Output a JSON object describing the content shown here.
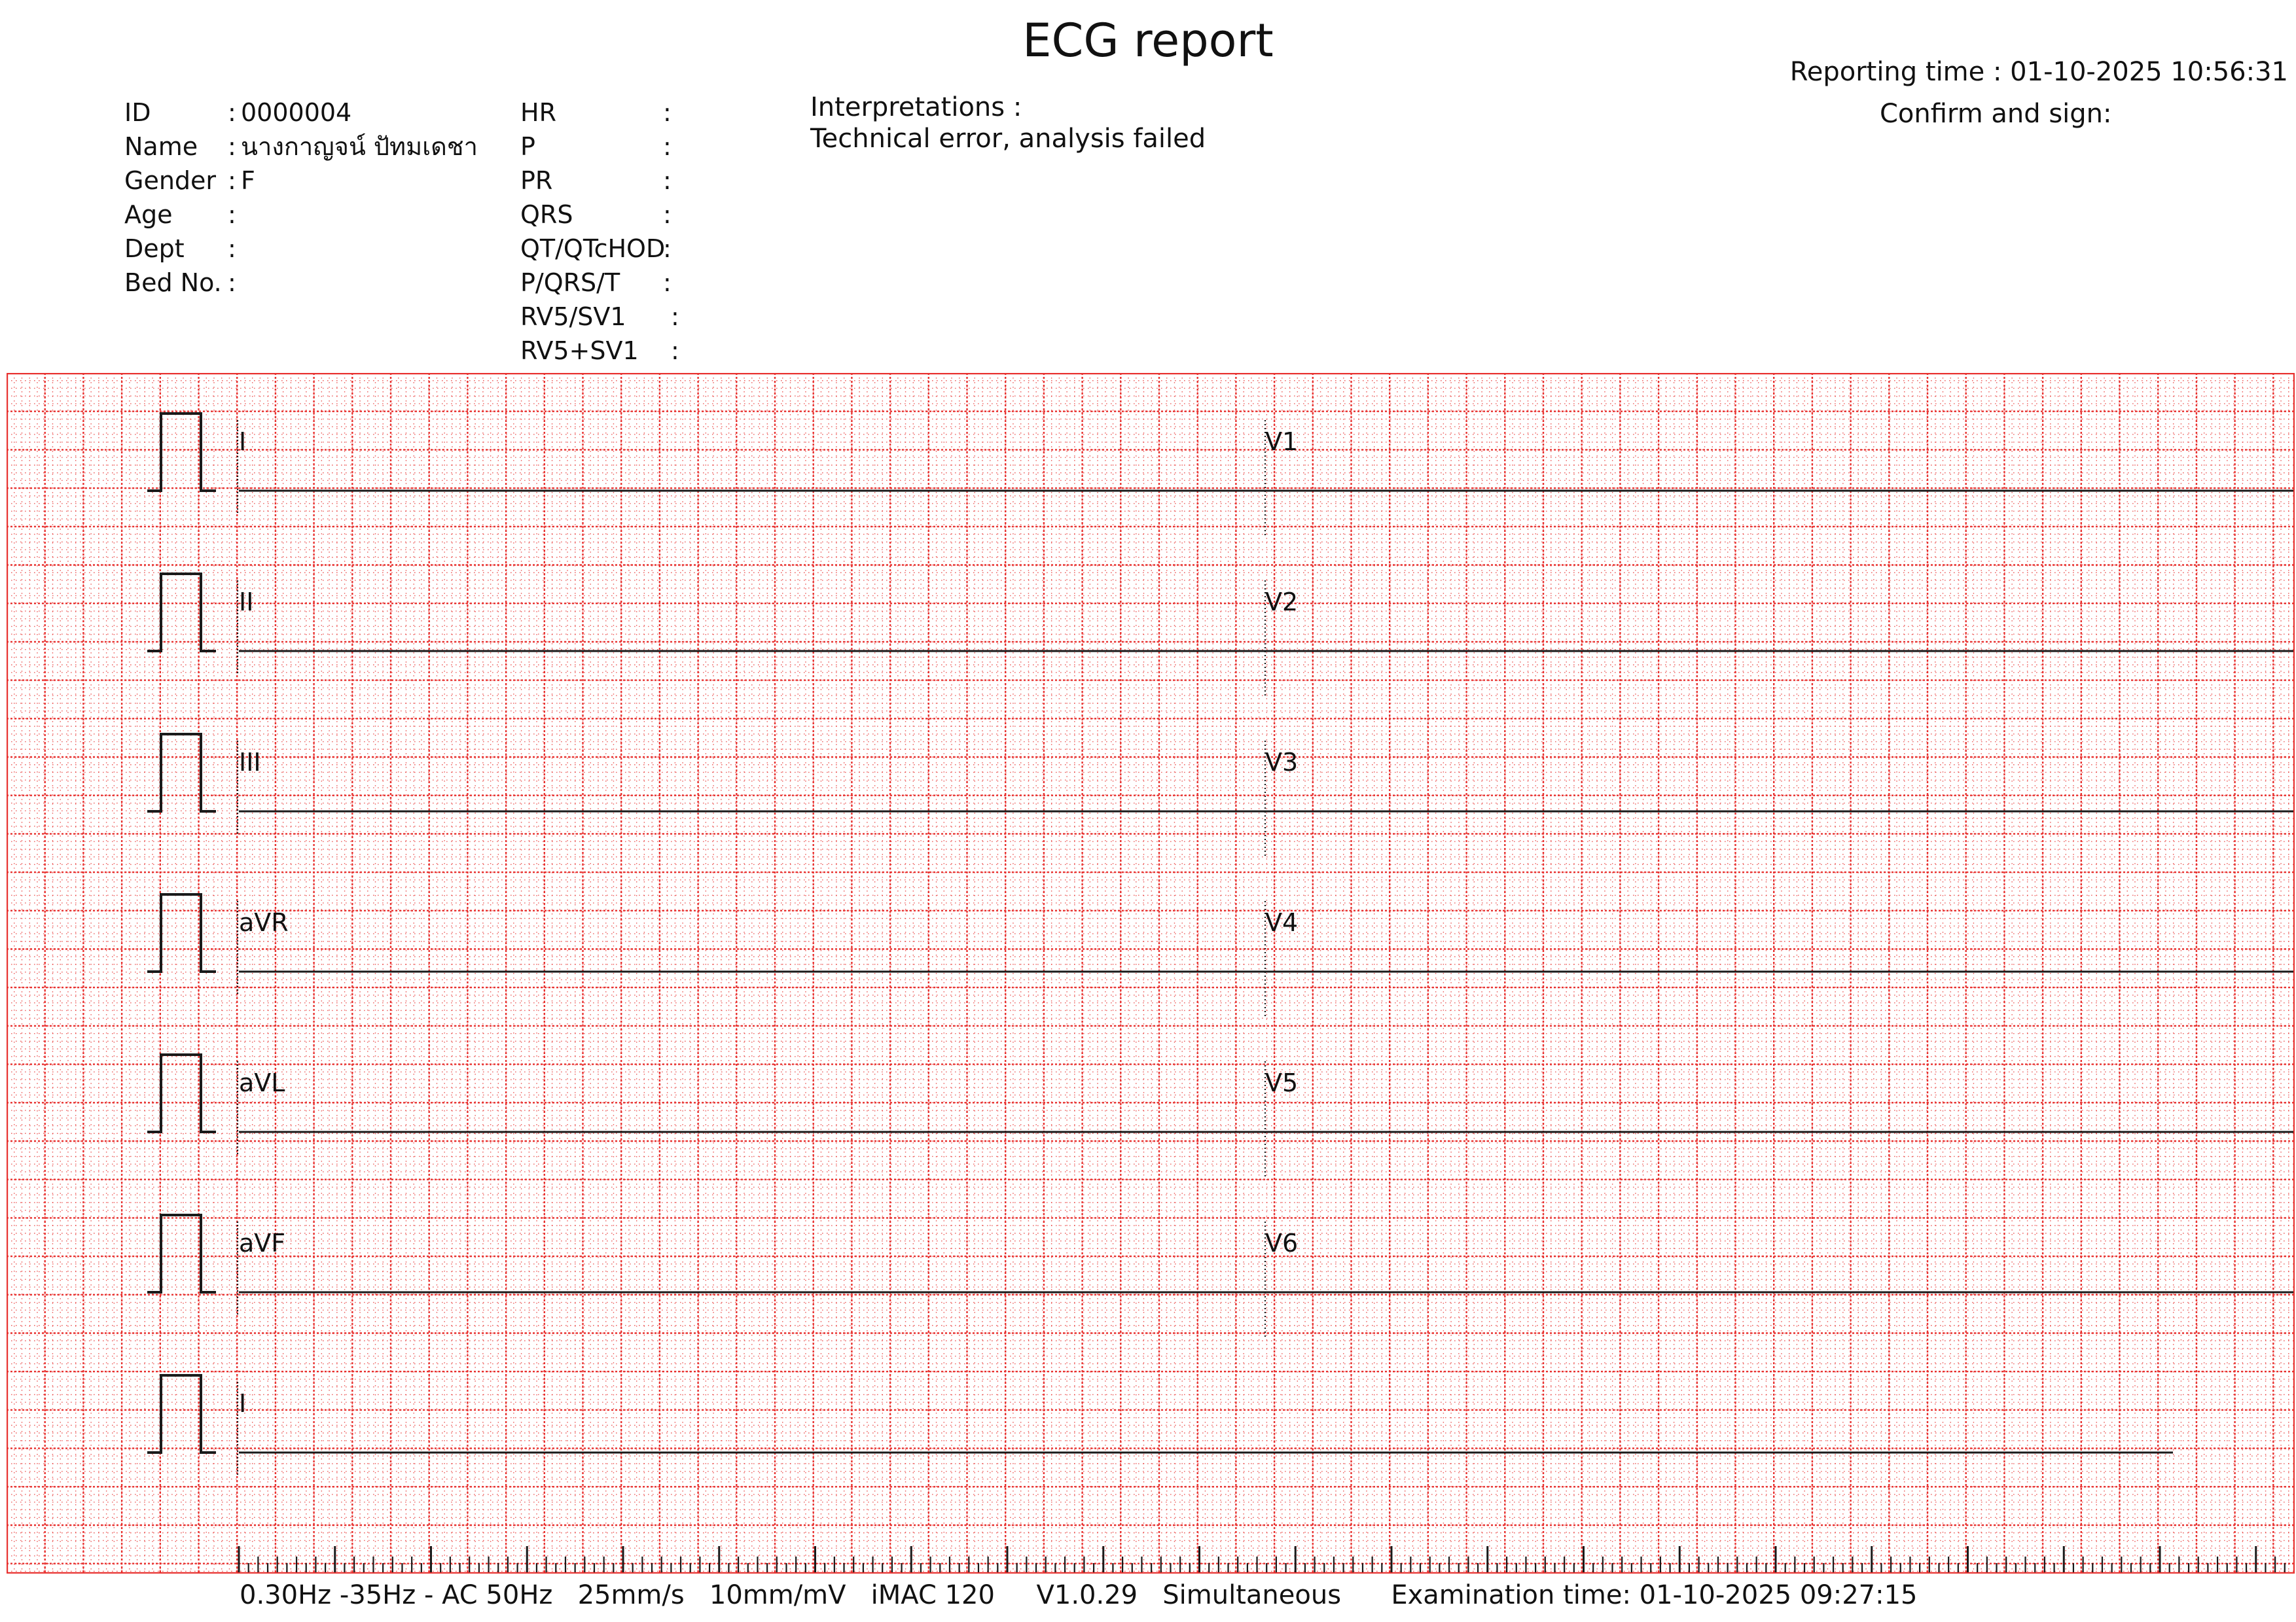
{
  "report": {
    "title": "ECG report",
    "reporting_time": "Reporting time : 01-10-2025 10:56:31",
    "confirm_sign": "Confirm and sign:"
  },
  "patient": [
    {
      "label": "ID",
      "value": "0000004"
    },
    {
      "label": "Name",
      "value": "นางกาญจน์ ปัทมเดชา"
    },
    {
      "label": "Gender",
      "value": "F"
    },
    {
      "label": "Age",
      "value": ""
    },
    {
      "label": "Dept",
      "value": ""
    },
    {
      "label": "Bed No.",
      "value": ""
    }
  ],
  "measurements": [
    {
      "label": "HR",
      "value": ""
    },
    {
      "label": "P",
      "value": ""
    },
    {
      "label": "PR",
      "value": ""
    },
    {
      "label": "QRS",
      "value": ""
    },
    {
      "label": "QT/QTcHOD",
      "value": ""
    },
    {
      "label": "P/QRS/T",
      "value": ""
    },
    {
      "label": "RV5/SV1",
      "value": ""
    },
    {
      "label": "RV5+SV1",
      "value": ""
    }
  ],
  "interpretation": {
    "heading": "Interpretations :",
    "text": "Technical error, analysis failed"
  },
  "leads": {
    "left": [
      "I",
      "II",
      "III",
      "aVR",
      "aVL",
      "aVF",
      "I"
    ],
    "right": [
      "V1",
      "V2",
      "V3",
      "V4",
      "V5",
      "V6"
    ]
  },
  "colors": {
    "grid": "#e8312f",
    "trace": "#1a1a1a"
  },
  "footer": {
    "filter": "0.30Hz -35Hz - AC 50Hz",
    "speed": "25mm/s",
    "gain": "10mm/mV",
    "device": "iMAC 120",
    "version": "V1.0.29",
    "mode": "Simultaneous",
    "exam_time": "Examination time: 01-10-2025 09:27:15"
  }
}
